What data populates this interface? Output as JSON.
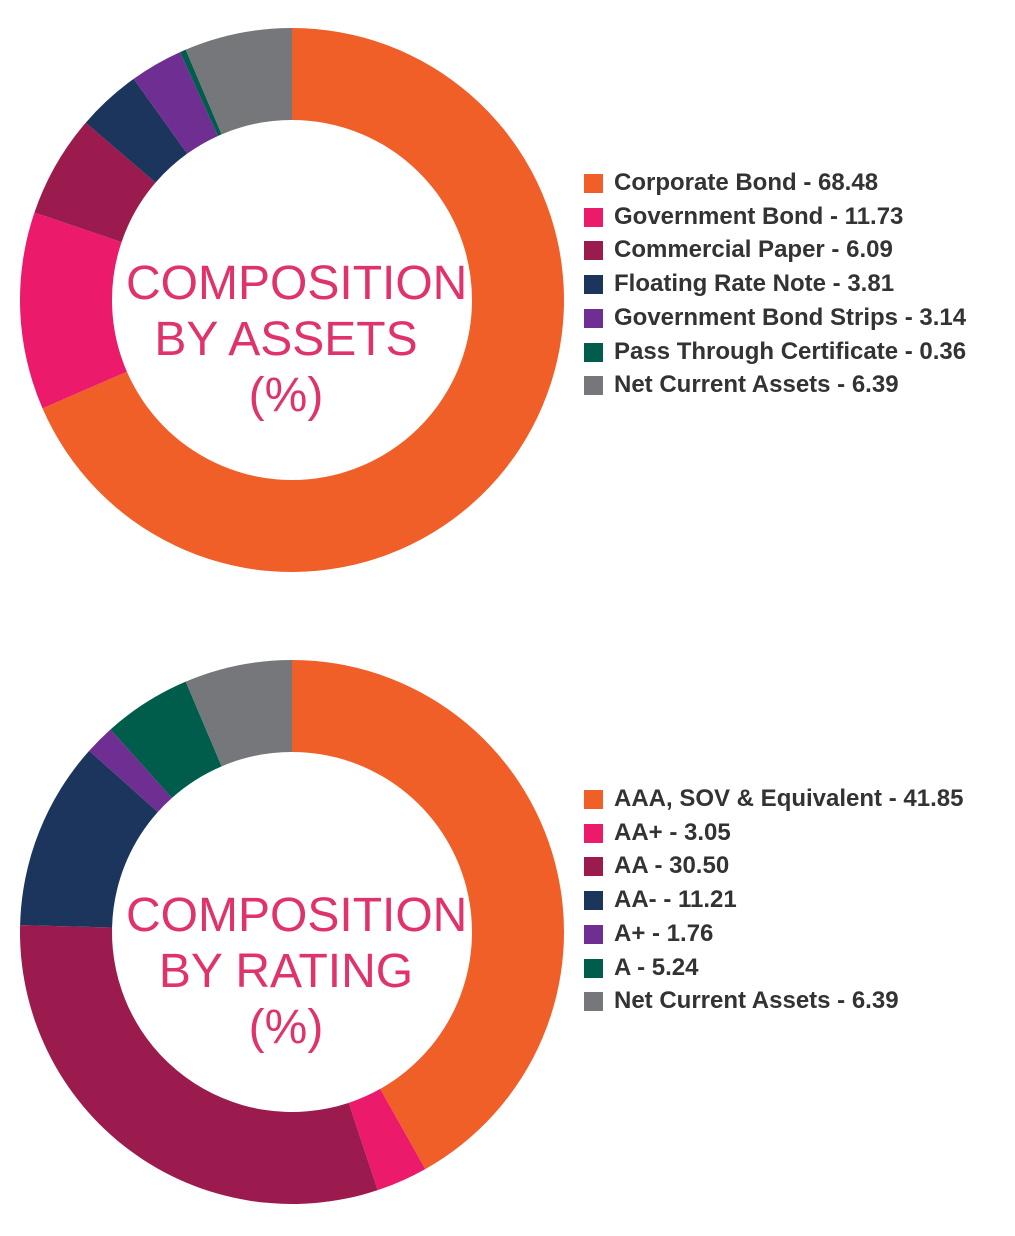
{
  "chart_data": [
    {
      "type": "pie",
      "title": "COMPOSITION BY ASSETS (%)",
      "title_lines": [
        "COMPOSITION",
        "BY ASSETS",
        "(%)"
      ],
      "legend_position": "right",
      "categories": [
        "Corporate Bond",
        "Government Bond",
        "Commercial Paper",
        "Floating Rate Note",
        "Government Bond Strips",
        "Pass Through Certificate",
        "Net Current Assets"
      ],
      "values": [
        68.48,
        11.73,
        6.09,
        3.81,
        3.14,
        0.36,
        6.39
      ],
      "legend_labels": [
        "Corporate Bond - 68.48",
        "Government Bond - 11.73",
        "Commercial Paper - 6.09",
        "Floating Rate Note - 3.81",
        "Government Bond Strips - 3.14",
        "Pass Through Certificate - 0.36",
        "Net Current Assets - 6.39"
      ],
      "colors": [
        "#f15f29",
        "#ec1a6a",
        "#9b1b4e",
        "#1b355d",
        "#6f2e91",
        "#005c4b",
        "#76777a"
      ]
    },
    {
      "type": "pie",
      "title": "COMPOSITION BY RATING (%)",
      "title_lines": [
        "COMPOSITION",
        "BY RATING",
        "(%)"
      ],
      "legend_position": "right",
      "categories": [
        "AAA, SOV & Equivalent",
        "AA+",
        "AA",
        "AA-",
        "A+",
        "A",
        "Net Current Assets"
      ],
      "values": [
        41.85,
        3.05,
        30.5,
        11.21,
        1.76,
        5.24,
        6.39
      ],
      "legend_labels": [
        "AAA, SOV & Equivalent - 41.85",
        "AA+ - 3.05",
        "AA - 30.50",
        "AA- - 11.21",
        "A+ - 1.76",
        "A - 5.24",
        "Net Current Assets - 6.39"
      ],
      "colors": [
        "#f15f29",
        "#ec1a6a",
        "#9b1b4e",
        "#1b355d",
        "#6f2e91",
        "#005c4b",
        "#76777a"
      ]
    }
  ]
}
